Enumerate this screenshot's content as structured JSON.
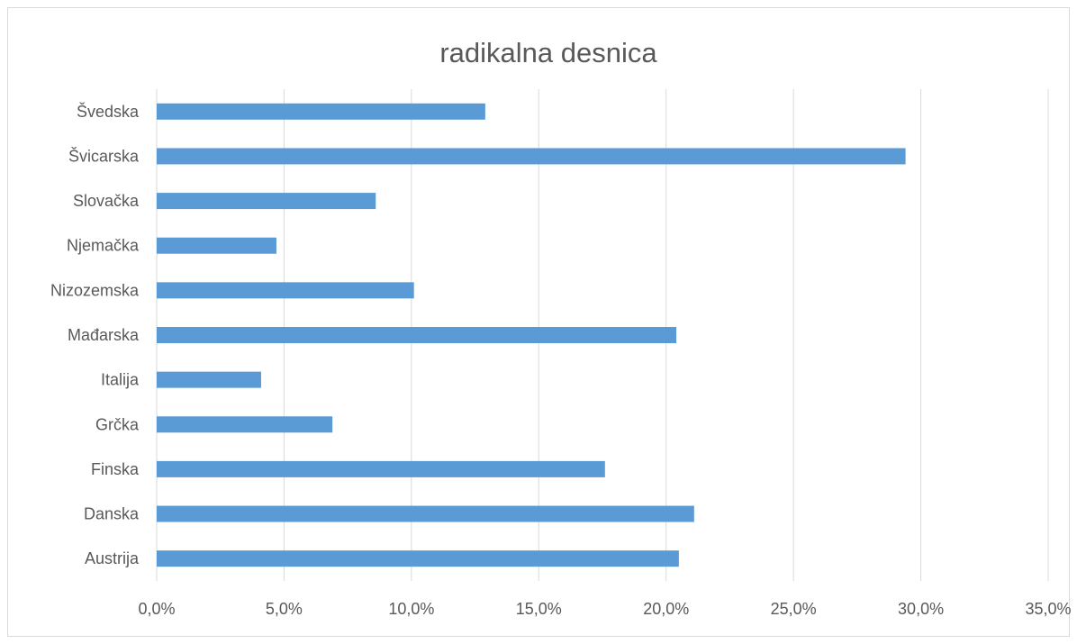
{
  "chart_data": {
    "type": "bar",
    "orientation": "horizontal",
    "title": "radikalna desnica",
    "categories": [
      "Švedska",
      "Švicarska",
      "Slovačka",
      "Njemačka",
      "Nizozemska",
      "Mađarska",
      "Italija",
      "Grčka",
      "Finska",
      "Danska",
      "Austrija"
    ],
    "values": [
      12.9,
      29.4,
      8.6,
      4.7,
      10.1,
      20.4,
      4.1,
      6.9,
      17.6,
      21.1,
      20.5
    ],
    "value_unit": "percent",
    "xlim": [
      0,
      35
    ],
    "x_ticks": [
      0,
      5,
      10,
      15,
      20,
      25,
      30,
      35
    ],
    "x_tick_labels": [
      "0,0%",
      "5,0%",
      "10,0%",
      "15,0%",
      "20,0%",
      "25,0%",
      "30,0%",
      "35,0%"
    ],
    "xlabel": "",
    "ylabel": "",
    "grid": "vertical",
    "legend": "none",
    "bar_color": "#5b9bd5"
  }
}
